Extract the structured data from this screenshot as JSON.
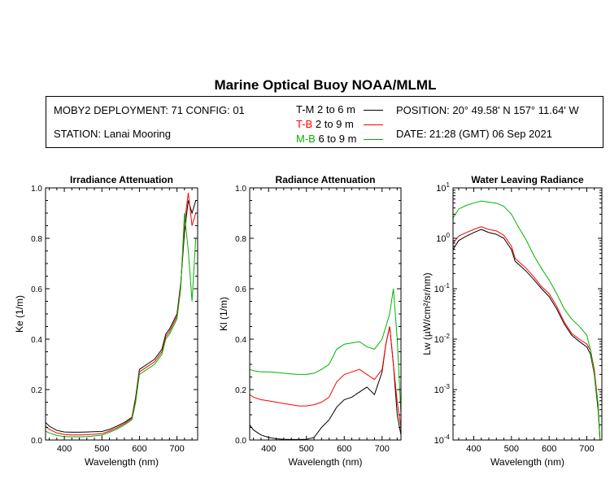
{
  "title": "Marine Optical Buoy NOAA/MLML",
  "info": {
    "deployment": "MOBY2 DEPLOYMENT: 71 CONFIG: 01",
    "station": "STATION: Lanai Mooring",
    "position": "POSITION: 20° 49.58' N   157° 11.64' W",
    "date": "DATE: 21:28 (GMT) 06 Sep 2021"
  },
  "legend": [
    {
      "code": "T-M",
      "range": "2 to 6  m",
      "color": "#000000"
    },
    {
      "code": "T-B",
      "range": "2 to 9  m",
      "color": "#ff0000"
    },
    {
      "code": "M-B",
      "range": "6 to 9  m",
      "color": "#00b400"
    }
  ],
  "chart_data": [
    {
      "type": "line",
      "title": "Irradiance Attenuation",
      "xlabel": "Wavelength (nm)",
      "ylabel": "Ke  (1/m)",
      "xlim": [
        350,
        755
      ],
      "ylim": [
        0,
        1.0
      ],
      "xticks": [
        400,
        500,
        600,
        700
      ],
      "yticks": [
        {
          "v": 0,
          "label": "0.0"
        },
        {
          "v": 0.2,
          "label": "0.2"
        },
        {
          "v": 0.4,
          "label": "0.4"
        },
        {
          "v": 0.6,
          "label": "0.6"
        },
        {
          "v": 0.8,
          "label": "0.8"
        },
        {
          "v": 1.0,
          "label": "1.0"
        }
      ],
      "series": [
        {
          "name": "T-M",
          "color": "#000000",
          "x": [
            350,
            360,
            380,
            400,
            420,
            440,
            460,
            480,
            500,
            520,
            540,
            560,
            580,
            590,
            600,
            620,
            640,
            660,
            670,
            680,
            700,
            710,
            720,
            730,
            740,
            750
          ],
          "y": [
            0.07,
            0.055,
            0.038,
            0.032,
            0.031,
            0.031,
            0.032,
            0.033,
            0.034,
            0.042,
            0.055,
            0.07,
            0.09,
            0.17,
            0.28,
            0.3,
            0.32,
            0.36,
            0.42,
            0.44,
            0.5,
            0.62,
            0.82,
            0.95,
            0.9,
            0.95
          ]
        },
        {
          "name": "T-B",
          "color": "#ff0000",
          "x": [
            350,
            360,
            380,
            400,
            420,
            440,
            460,
            480,
            500,
            520,
            540,
            560,
            580,
            590,
            600,
            620,
            640,
            660,
            670,
            680,
            700,
            710,
            720,
            730,
            740,
            750
          ],
          "y": [
            0.055,
            0.042,
            0.028,
            0.022,
            0.02,
            0.02,
            0.021,
            0.023,
            0.025,
            0.035,
            0.048,
            0.065,
            0.085,
            0.16,
            0.27,
            0.29,
            0.31,
            0.35,
            0.41,
            0.43,
            0.49,
            0.61,
            0.86,
            0.98,
            0.85,
            0.9
          ]
        },
        {
          "name": "M-B",
          "color": "#00b400",
          "x": [
            350,
            360,
            380,
            400,
            420,
            440,
            460,
            480,
            500,
            520,
            540,
            560,
            580,
            590,
            600,
            620,
            640,
            660,
            670,
            680,
            700,
            710,
            720,
            730,
            740,
            750
          ],
          "y": [
            0.035,
            0.028,
            0.018,
            0.014,
            0.013,
            0.013,
            0.014,
            0.016,
            0.019,
            0.03,
            0.043,
            0.06,
            0.08,
            0.15,
            0.26,
            0.28,
            0.3,
            0.34,
            0.4,
            0.42,
            0.48,
            0.6,
            0.9,
            0.75,
            0.55,
            0.8
          ]
        }
      ]
    },
    {
      "type": "line",
      "title": "Radiance Attenuation",
      "xlabel": "Wavelength (nm)",
      "ylabel": "Kl  (1/m)",
      "xlim": [
        350,
        750
      ],
      "ylim": [
        0,
        1.0
      ],
      "xticks": [
        400,
        500,
        600,
        700
      ],
      "yticks": [
        {
          "v": 0,
          "label": "0.0"
        },
        {
          "v": 0.2,
          "label": "0.2"
        },
        {
          "v": 0.4,
          "label": "0.4"
        },
        {
          "v": 0.6,
          "label": "0.6"
        },
        {
          "v": 0.8,
          "label": "0.8"
        },
        {
          "v": 1.0,
          "label": "1.0"
        }
      ],
      "series": [
        {
          "name": "T-M",
          "color": "#000000",
          "x": [
            350,
            360,
            380,
            400,
            420,
            440,
            460,
            480,
            500,
            520,
            540,
            560,
            580,
            600,
            620,
            640,
            660,
            680,
            700,
            710,
            720,
            730,
            740,
            750
          ],
          "y": [
            0.06,
            0.04,
            0.02,
            0.01,
            0.005,
            0.003,
            0.002,
            0.002,
            0.003,
            0.01,
            0.05,
            0.08,
            0.13,
            0.16,
            0.17,
            0.19,
            0.21,
            0.18,
            0.27,
            0.38,
            0.45,
            0.3,
            0.1,
            0.02
          ]
        },
        {
          "name": "T-B",
          "color": "#ff0000",
          "x": [
            350,
            360,
            380,
            400,
            420,
            440,
            460,
            480,
            500,
            520,
            540,
            560,
            580,
            600,
            620,
            640,
            660,
            680,
            700,
            710,
            720,
            730,
            740,
            750
          ],
          "y": [
            0.18,
            0.17,
            0.16,
            0.155,
            0.15,
            0.145,
            0.14,
            0.135,
            0.135,
            0.14,
            0.15,
            0.17,
            0.23,
            0.26,
            0.27,
            0.28,
            0.26,
            0.24,
            0.28,
            0.38,
            0.45,
            0.3,
            0.15,
            0.05
          ]
        },
        {
          "name": "M-B",
          "color": "#00b400",
          "x": [
            350,
            360,
            380,
            400,
            420,
            440,
            460,
            480,
            500,
            520,
            540,
            560,
            580,
            600,
            620,
            640,
            660,
            680,
            700,
            710,
            720,
            730,
            740,
            750
          ],
          "y": [
            0.28,
            0.275,
            0.27,
            0.27,
            0.268,
            0.265,
            0.262,
            0.26,
            0.26,
            0.265,
            0.28,
            0.3,
            0.36,
            0.38,
            0.385,
            0.39,
            0.37,
            0.36,
            0.4,
            0.45,
            0.5,
            0.6,
            0.4,
            0.1
          ]
        }
      ]
    },
    {
      "type": "line",
      "title": "Water Leaving Radiance",
      "xlabel": "Wavelength (nm)",
      "ylabel": "Lw  (µW/cm²/sr/nm)",
      "yscale": "log",
      "xlim": [
        345,
        740
      ],
      "ylim": [
        0.0001,
        10
      ],
      "xticks": [
        400,
        500,
        600,
        700
      ],
      "yticks": [
        {
          "v": 10,
          "base": "10",
          "exp": "1"
        },
        {
          "v": 1,
          "base": "10",
          "exp": "0"
        },
        {
          "v": 0.1,
          "base": "10",
          "exp": "-1"
        },
        {
          "v": 0.01,
          "base": "10",
          "exp": "-2"
        },
        {
          "v": 0.001,
          "base": "10",
          "exp": "-3"
        },
        {
          "v": 0.0001,
          "base": "10",
          "exp": "-4"
        }
      ],
      "series": [
        {
          "name": "T-M",
          "color": "#000000",
          "x": [
            345,
            360,
            380,
            400,
            420,
            440,
            460,
            480,
            500,
            510,
            520,
            540,
            560,
            580,
            600,
            620,
            640,
            660,
            680,
            700,
            710,
            720,
            730,
            735
          ],
          "y": [
            0.6,
            0.9,
            1.1,
            1.3,
            1.5,
            1.3,
            1.2,
            1.0,
            0.6,
            0.35,
            0.3,
            0.22,
            0.15,
            0.1,
            0.07,
            0.04,
            0.02,
            0.012,
            0.009,
            0.007,
            0.005,
            0.002,
            0.0004,
            0.0001
          ]
        },
        {
          "name": "T-B",
          "color": "#ff0000",
          "x": [
            345,
            360,
            380,
            400,
            420,
            440,
            460,
            480,
            500,
            510,
            520,
            540,
            560,
            580,
            600,
            620,
            640,
            660,
            680,
            700,
            710,
            720,
            730,
            735
          ],
          "y": [
            0.8,
            1.1,
            1.3,
            1.5,
            1.7,
            1.5,
            1.4,
            1.15,
            0.7,
            0.4,
            0.34,
            0.25,
            0.17,
            0.11,
            0.08,
            0.045,
            0.022,
            0.013,
            0.01,
            0.008,
            0.006,
            0.0025,
            0.0005,
            0.0001
          ]
        },
        {
          "name": "M-B",
          "color": "#00b400",
          "x": [
            345,
            360,
            380,
            400,
            420,
            440,
            460,
            480,
            500,
            520,
            540,
            560,
            580,
            600,
            620,
            640,
            660,
            680,
            700,
            710,
            720,
            730,
            735
          ],
          "y": [
            2.5,
            3.8,
            4.5,
            5.0,
            5.5,
            5.2,
            5.0,
            4.3,
            3.0,
            1.6,
            0.9,
            0.45,
            0.25,
            0.15,
            0.08,
            0.04,
            0.025,
            0.018,
            0.012,
            0.006,
            0.002,
            0.0005,
            0.0001
          ]
        }
      ]
    }
  ]
}
